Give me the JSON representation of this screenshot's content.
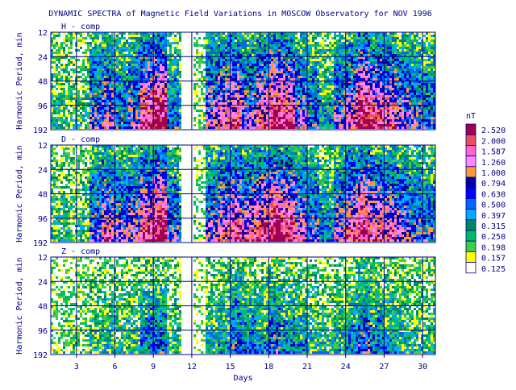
{
  "chart_data": {
    "type": "heatmap",
    "title": "DYNAMIC SPECTRA of Magnetic Field Variations in MOSCOW Observatory for NOV 1996",
    "xlabel": "Days",
    "ylabel": "Harmonic Period, min",
    "x_ticks": [
      3,
      6,
      9,
      12,
      15,
      18,
      21,
      24,
      27,
      30
    ],
    "x_range": [
      1,
      31
    ],
    "y_ticks": [
      12,
      24,
      48,
      96,
      192
    ],
    "y_scale": "log2",
    "panels": [
      {
        "label": "H - comp",
        "intensity": [
          0.22,
          0.18,
          0.15,
          0.55,
          0.6,
          0.45,
          0.55,
          0.85,
          0.95,
          0.4,
          0.3,
          0.05,
          0.6,
          0.7,
          0.8,
          0.6,
          0.75,
          0.9,
          0.85,
          0.6,
          0.45,
          0.3,
          0.55,
          0.7,
          0.95,
          0.8,
          0.75,
          0.6,
          0.5,
          0.45
        ]
      },
      {
        "label": "D - comp",
        "intensity": [
          0.2,
          0.2,
          0.2,
          0.55,
          0.7,
          0.55,
          0.6,
          0.8,
          0.95,
          0.5,
          0.35,
          0.05,
          0.55,
          0.7,
          0.8,
          0.7,
          0.8,
          0.95,
          0.85,
          0.65,
          0.5,
          0.35,
          0.6,
          0.75,
          0.9,
          0.75,
          0.7,
          0.6,
          0.5,
          0.45
        ]
      },
      {
        "label": "Z - comp",
        "intensity": [
          0.05,
          0.08,
          0.1,
          0.2,
          0.25,
          0.2,
          0.25,
          0.35,
          0.4,
          0.2,
          0.15,
          0.02,
          0.25,
          0.3,
          0.45,
          0.35,
          0.3,
          0.45,
          0.35,
          0.3,
          0.25,
          0.2,
          0.25,
          0.35,
          0.5,
          0.35,
          0.3,
          0.25,
          0.2,
          0.2
        ]
      }
    ],
    "legend": {
      "unit": "nT",
      "levels": [
        "2.520",
        "2.000",
        "1.587",
        "1.260",
        "1.000",
        "0.794",
        "0.630",
        "0.500",
        "0.397",
        "0.315",
        "0.250",
        "0.198",
        "0.157",
        "0.125"
      ],
      "colors": [
        "#a00050",
        "#e8505a",
        "#ff66cc",
        "#ff88ff",
        "#ff9933",
        "#0000a0",
        "#0000ff",
        "#0066ff",
        "#00aaff",
        "#008866",
        "#00bb66",
        "#44cc44",
        "#ffff00",
        "#ffffff"
      ]
    },
    "colors": {
      "axis": "#00008b",
      "text": "#00008b",
      "gap": "#ffffff"
    }
  }
}
